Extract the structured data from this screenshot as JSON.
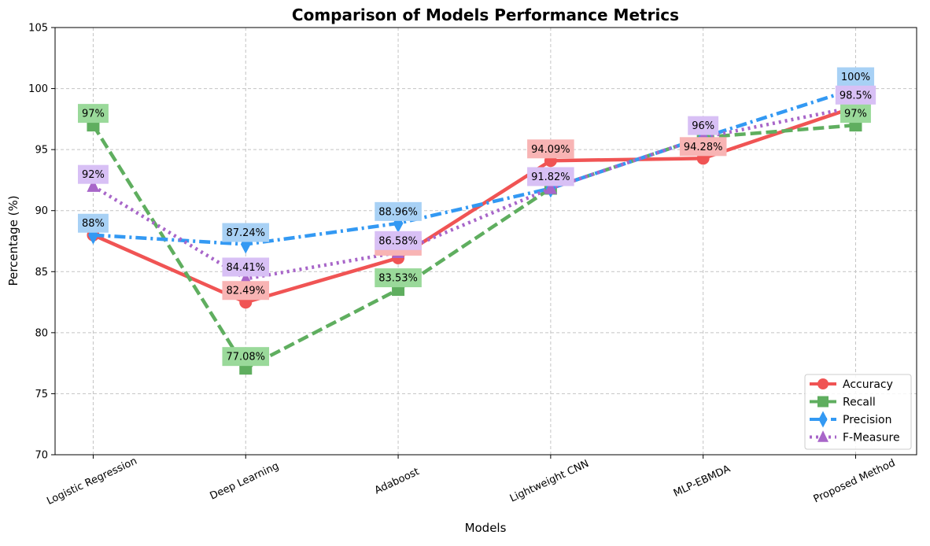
{
  "chart_data": {
    "type": "line",
    "title": "Comparison of Models Performance Metrics",
    "xlabel": "Models",
    "ylabel": "Percentage (%)",
    "ylim": [
      70,
      105
    ],
    "yticks": [
      70,
      75,
      80,
      85,
      90,
      95,
      100,
      105
    ],
    "grid": true,
    "legend_position": "bottom-right",
    "categories": [
      "Logistic Regression",
      "Deep Learning",
      "Adaboost",
      "Lightweight CNN",
      "MLP-EBMDA",
      "Proposed Method"
    ],
    "series": [
      {
        "name": "Accuracy",
        "values": [
          88,
          82.49,
          86.12,
          94.09,
          94.28,
          98.5
        ],
        "labels": [
          "",
          "82.49%",
          "86.12%",
          "94.09%",
          "94.28%",
          ""
        ],
        "color": "#f05454",
        "label_bg": "#f8b4b4",
        "marker": "circle",
        "dash": "solid"
      },
      {
        "name": "Recall",
        "values": [
          97,
          77.08,
          83.53,
          91.82,
          96,
          97
        ],
        "labels": [
          "97%",
          "77.08%",
          "83.53%",
          "",
          "",
          "97%"
        ],
        "color": "#5fae5f",
        "label_bg": "#9ad99a",
        "marker": "square",
        "dash": "dashed"
      },
      {
        "name": "Precision",
        "values": [
          88,
          87.24,
          88.96,
          91.82,
          96,
          100
        ],
        "labels": [
          "88%",
          "87.24%",
          "88.96%",
          "",
          "",
          "100%"
        ],
        "color": "#3399f3",
        "label_bg": "#a8d1f5",
        "marker": "diamond",
        "dash": "dashdot"
      },
      {
        "name": "F-Measure",
        "values": [
          92,
          84.41,
          86.58,
          91.82,
          96,
          98.5
        ],
        "labels": [
          "92%",
          "84.41%",
          "86.58%",
          "91.82%",
          "96%",
          "98.5%"
        ],
        "color": "#a866c9",
        "label_bg": "#d8c0f5",
        "marker": "triangle",
        "dash": "dotted"
      }
    ]
  }
}
